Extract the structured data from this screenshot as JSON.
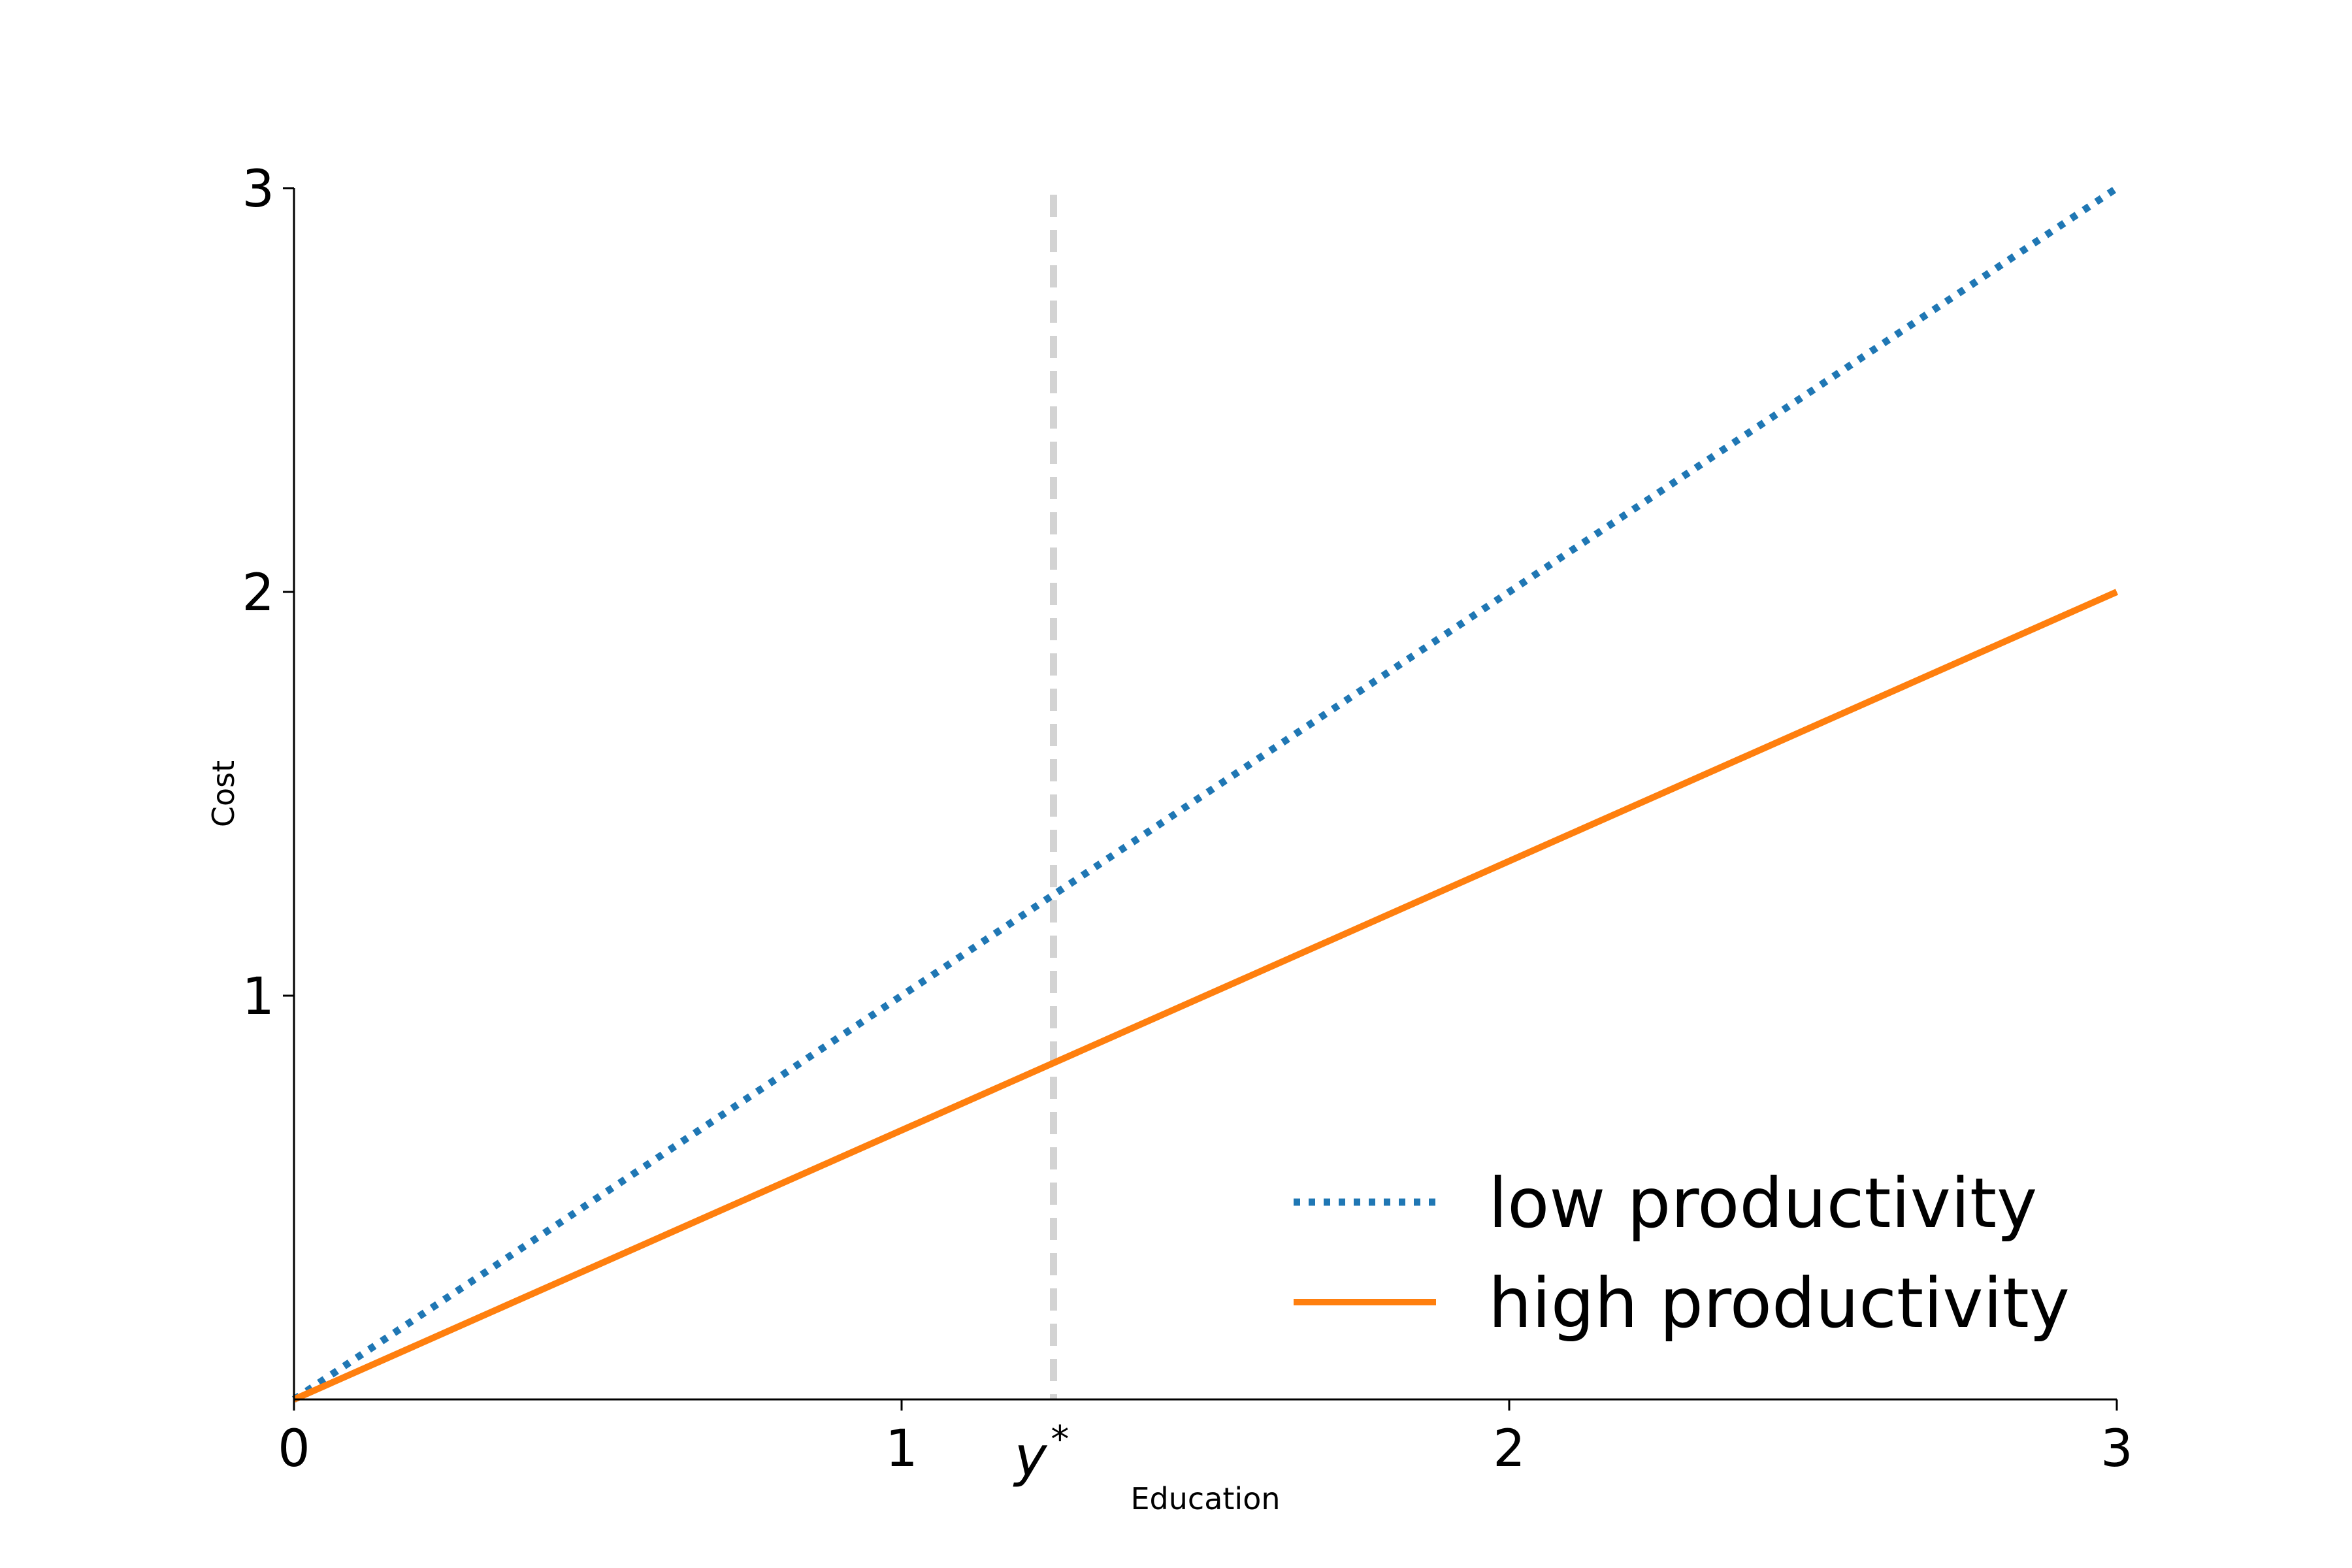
{
  "chart_data": {
    "type": "line",
    "title": "",
    "xlabel": "Education",
    "ylabel": "Cost",
    "xlim": [
      0,
      3
    ],
    "ylim": [
      0,
      3
    ],
    "xticks": [
      0,
      1,
      2,
      3
    ],
    "yticks": [
      1,
      2,
      3
    ],
    "xtick_labels": [
      "0",
      "1",
      "2",
      "3"
    ],
    "ytick_labels": [
      "1",
      "2",
      "3"
    ],
    "grid": false,
    "legend_position": "lower-right",
    "series": [
      {
        "name": "low productivity",
        "style": "dotted",
        "color": "#1f77b4",
        "x": [
          0,
          3
        ],
        "y": [
          0,
          3
        ]
      },
      {
        "name": "high productivity",
        "style": "solid",
        "color": "#ff7f0e",
        "x": [
          0,
          3
        ],
        "y": [
          0,
          2
        ]
      }
    ],
    "reference_line": {
      "orientation": "vertical",
      "x": 1.25,
      "style": "dashed",
      "color": "#d3d3d3",
      "label": "y",
      "label_superscript": "*"
    }
  }
}
